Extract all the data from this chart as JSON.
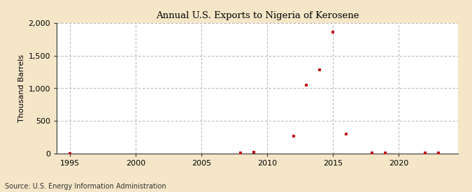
{
  "title": "Annual U.S. Exports to Nigeria of Kerosene",
  "ylabel": "Thousand Barrels",
  "source": "Source: U.S. Energy Information Administration",
  "background_color": "#f5e6c8",
  "plot_background_color": "#ffffff",
  "grid_color": "#999999",
  "marker_color": "#c0131a",
  "xlim": [
    1994,
    2024.5
  ],
  "ylim": [
    0,
    2000
  ],
  "xticks": [
    1995,
    2000,
    2005,
    2010,
    2015,
    2020
  ],
  "yticks": [
    0,
    500,
    1000,
    1500,
    2000
  ],
  "data_x": [
    1995,
    2008,
    2009,
    2012,
    2013,
    2014,
    2015,
    2016,
    2018,
    2019,
    2022,
    2023
  ],
  "data_y": [
    5,
    15,
    20,
    270,
    1050,
    1280,
    1860,
    300,
    10,
    10,
    10,
    10
  ]
}
